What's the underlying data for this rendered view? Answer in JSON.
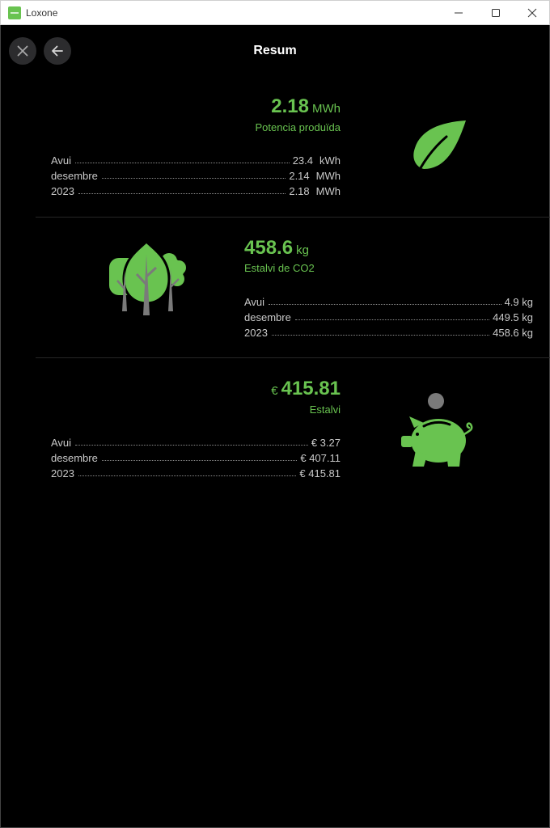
{
  "window": {
    "title": "Loxone"
  },
  "header": {
    "title": "Resum"
  },
  "colors": {
    "accent": "#69c350",
    "background": "#000000",
    "muted": "#c9c9c9"
  },
  "energy": {
    "value": "2.18",
    "unit": "MWh",
    "label": "Potencia produïda",
    "icon": "leaf-icon",
    "rows": [
      {
        "label": "Avui",
        "value": "23.4",
        "unit": "kWh"
      },
      {
        "label": "desembre",
        "value": "2.14",
        "unit": "MWh"
      },
      {
        "label": "2023",
        "value": "2.18",
        "unit": "MWh"
      }
    ]
  },
  "co2": {
    "value": "458.6",
    "unit": "kg",
    "label": "Estalvi de CO2",
    "icon": "trees-icon",
    "rows": [
      {
        "label": "Avui",
        "value": "4.9 kg"
      },
      {
        "label": "desembre",
        "value": "449.5 kg"
      },
      {
        "label": "2023",
        "value": "458.6 kg"
      }
    ]
  },
  "savings": {
    "prefix": "€",
    "value": "415.81",
    "label": "Estalvi",
    "icon": "piggy-bank-icon",
    "rows": [
      {
        "label": "Avui",
        "value": "€ 3.27"
      },
      {
        "label": "desembre",
        "value": "€ 407.11"
      },
      {
        "label": "2023",
        "value": "€ 415.81"
      }
    ]
  }
}
